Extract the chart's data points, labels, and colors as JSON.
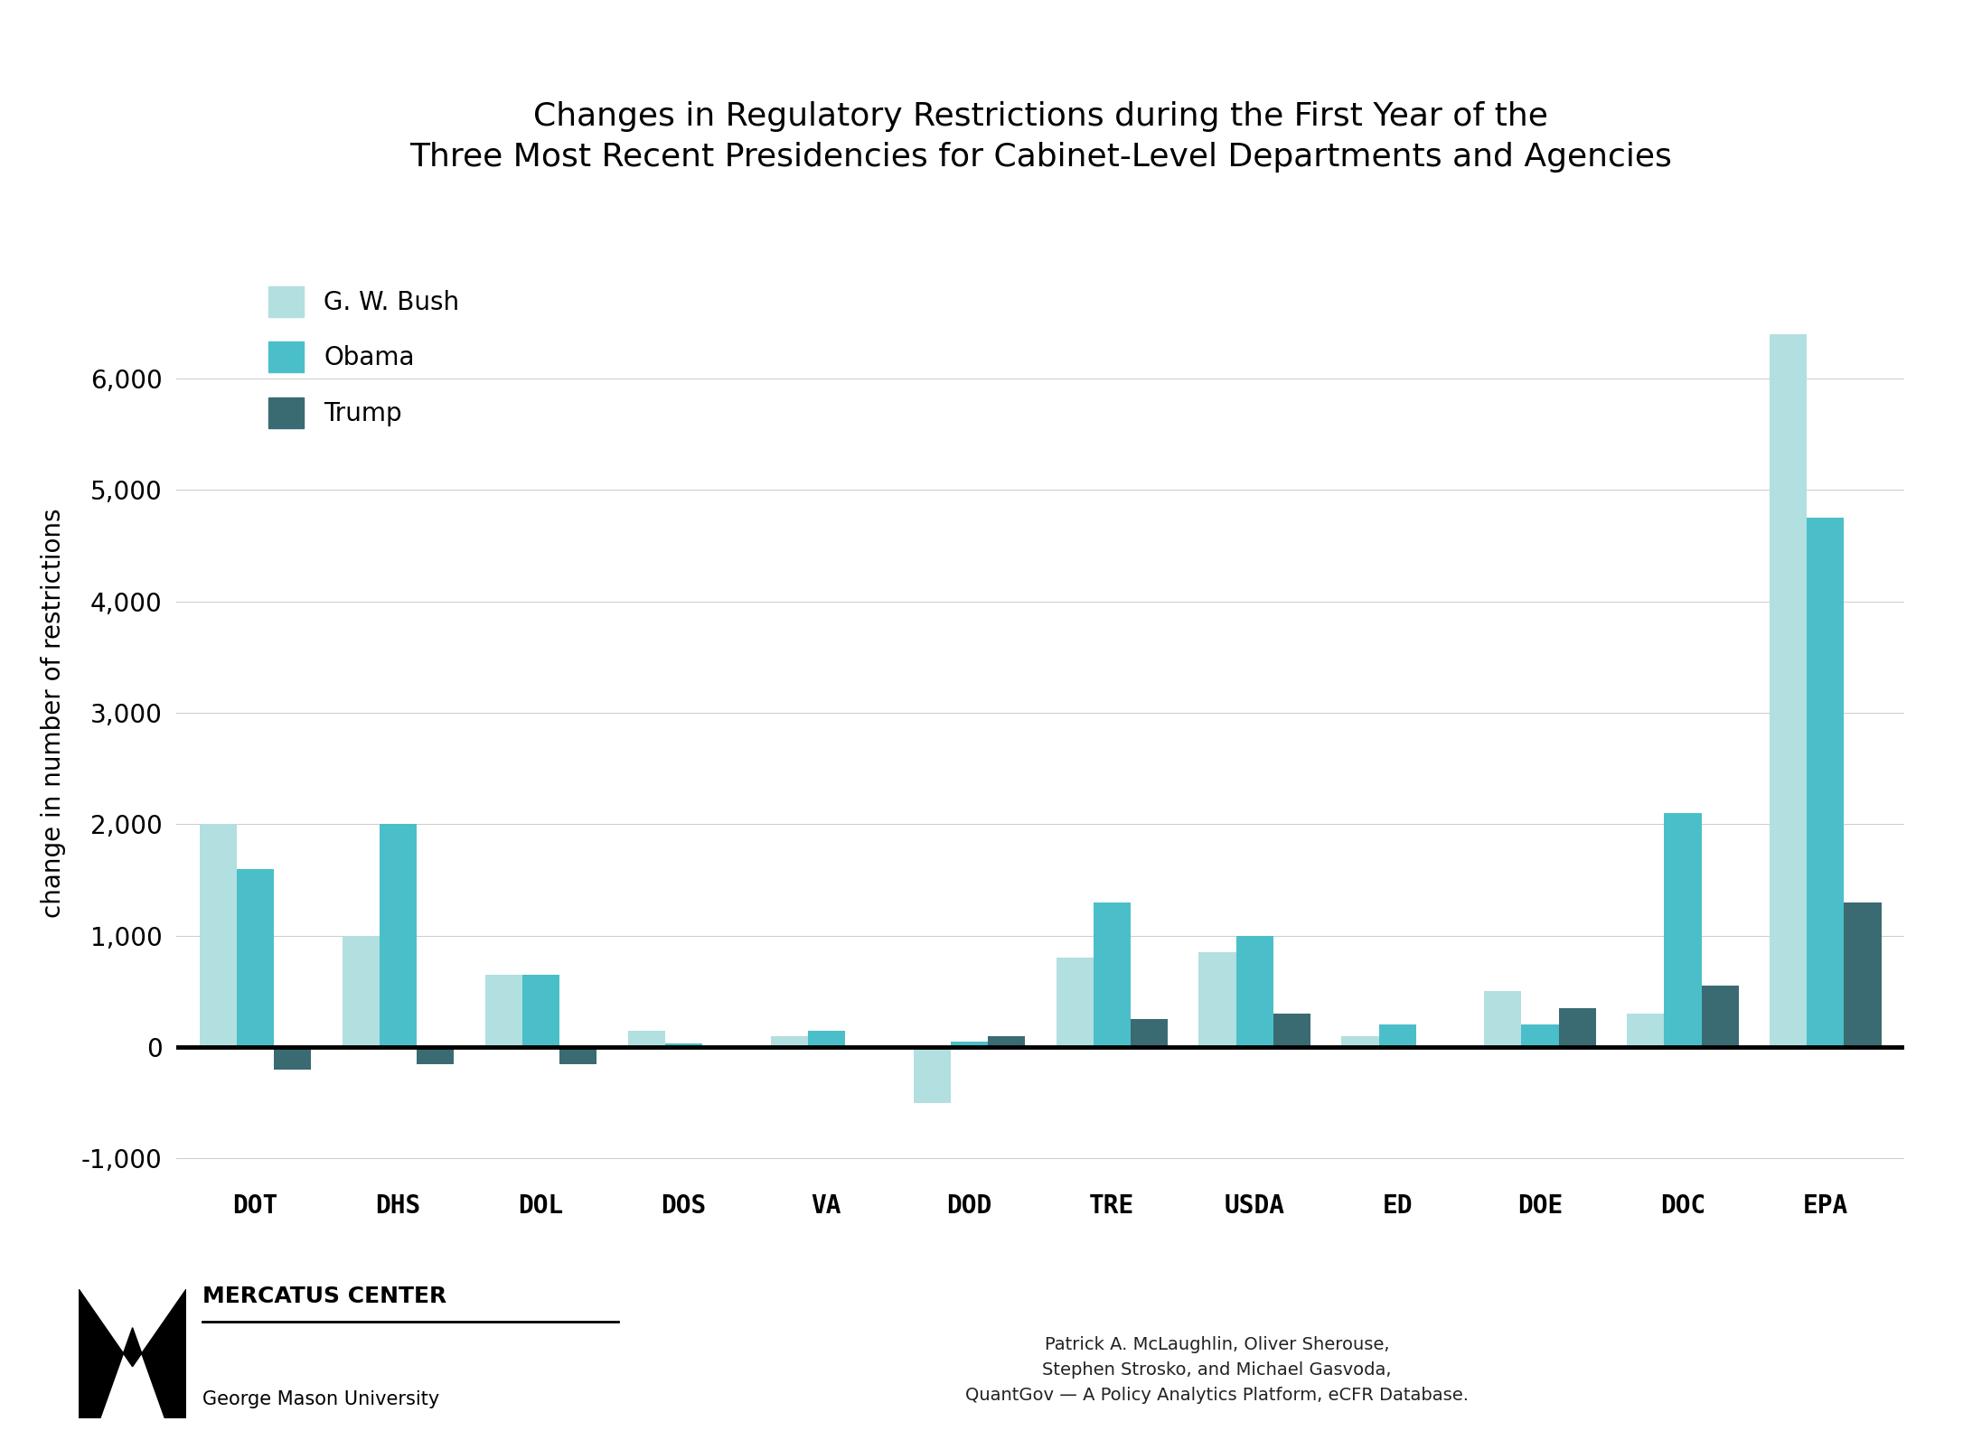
{
  "title_line1": "Changes in Regulatory Restrictions during the First Year of the",
  "title_line2": "Three Most Recent Presidencies for Cabinet-Level Departments and Agencies",
  "categories": [
    "DOT",
    "DHS",
    "DOL",
    "DOS",
    "VA",
    "DOD",
    "TRE",
    "USDA",
    "ED",
    "DOE",
    "DOC",
    "EPA"
  ],
  "bush": [
    2000,
    1000,
    650,
    150,
    100,
    -500,
    800,
    850,
    100,
    500,
    300,
    6400
  ],
  "obama": [
    1600,
    2000,
    650,
    30,
    150,
    50,
    1300,
    1000,
    200,
    200,
    2100,
    4750
  ],
  "trump": [
    -200,
    -150,
    -150,
    0,
    0,
    100,
    250,
    300,
    0,
    350,
    550,
    1300
  ],
  "color_bush": "#b2dfe0",
  "color_obama": "#4abfc9",
  "color_trump": "#3a6b72",
  "ylabel": "change in number of restrictions",
  "ylim_min": -1200,
  "ylim_max": 7200,
  "yticks": [
    -1000,
    0,
    1000,
    2000,
    3000,
    4000,
    5000,
    6000
  ],
  "legend_labels": [
    "G. W. Bush",
    "Obama",
    "Trump"
  ],
  "bar_width": 0.26,
  "title_fontsize": 26,
  "tick_fontsize": 20,
  "label_fontsize": 20,
  "legend_fontsize": 20,
  "background_color": "#ffffff",
  "footer_right": "Patrick A. McLaughlin, Oliver Sherouse,\nStephen Strosko, and Michael Gasvoda,\nQuantGov — A Policy Analytics Platform, eCFR Database."
}
